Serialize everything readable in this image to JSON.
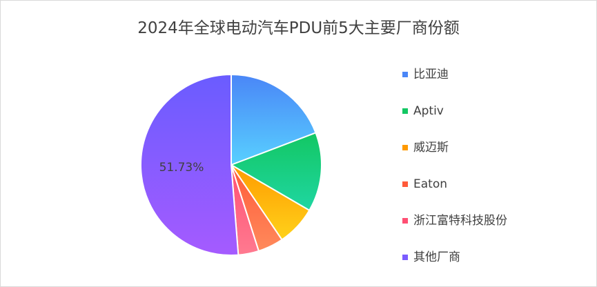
{
  "chart_data": {
    "type": "pie",
    "title": "2024年全球电动汽车PDU前5大主要厂商份额",
    "categories": [
      "比亚迪",
      "Aptiv",
      "威迈斯",
      "Eaton",
      "浙江富特科技股份",
      "其他厂商"
    ],
    "values": [
      19.4,
      14.3,
      7.2,
      4.6,
      3.7,
      51.73
    ],
    "data_labels": [
      "",
      "",
      "",
      "",
      "",
      "51.73%"
    ],
    "colors": [
      [
        "#4a86f7",
        "#58d0ff"
      ],
      [
        "#13c763",
        "#1fd6a2"
      ],
      [
        "#ff9a00",
        "#ffd21a"
      ],
      [
        "#ff5a3a",
        "#ff8a5b"
      ],
      [
        "#ff4f73",
        "#ff7a90"
      ],
      [
        "#6a5cff",
        "#a55bff"
      ]
    ],
    "legend_colors": [
      "#4a86f7",
      "#13c763",
      "#ff9a00",
      "#ff5a3a",
      "#ff4f73",
      "#7b5cff"
    ],
    "legend_position": "right"
  }
}
